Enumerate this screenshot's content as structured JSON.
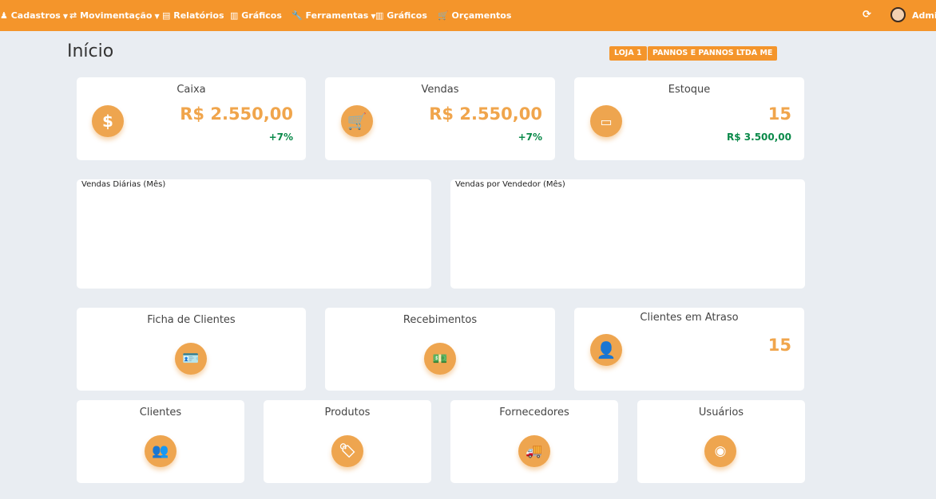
{
  "nav": {
    "items": [
      {
        "label": "Cadastros",
        "icon": "user-icon",
        "caret": true
      },
      {
        "label": "Movimentação",
        "icon": "exchange-icon",
        "caret": true
      },
      {
        "label": "Relatórios",
        "icon": "list-icon",
        "caret": false
      },
      {
        "label": "Gráficos",
        "icon": "bar-chart-icon",
        "caret": false
      },
      {
        "label": "Ferramentas",
        "icon": "wrench-icon",
        "caret": true
      },
      {
        "label": "Gráficos",
        "icon": "bar-chart-icon",
        "caret": false
      },
      {
        "label": "Orçamentos",
        "icon": "cart-icon",
        "caret": false
      }
    ],
    "user": "Admin"
  },
  "page": {
    "title": "Início",
    "badges": [
      "LOJA 1",
      "PANNOS E PANNOS LTDA ME"
    ]
  },
  "cards": {
    "caixa": {
      "title": "Caixa",
      "value": "R$ 2.550,00",
      "delta": "+7%"
    },
    "vendas": {
      "title": "Vendas",
      "value": "R$ 2.550,00",
      "delta": "+7%"
    },
    "estoque": {
      "title": "Estoque",
      "value": "15",
      "amount": "R$ 3.500,00"
    },
    "ficha": {
      "title": "Ficha de Clientes"
    },
    "recebimentos": {
      "title": "Recebimentos"
    },
    "atraso": {
      "title": "Clientes em Atraso",
      "value": "15"
    },
    "clientes": {
      "title": "Clientes"
    },
    "produtos": {
      "title": "Produtos"
    },
    "fornecedores": {
      "title": "Fornecedores"
    },
    "usuarios": {
      "title": "Usuários"
    }
  },
  "charts": {
    "diarias": "Vendas Diárias (Mês)",
    "vendedor": "Vendas por Vendedor (Mês)"
  },
  "colors": {
    "brand": "#f4952b",
    "icon": "#eea54f",
    "positive": "#0b8a4a",
    "background": "#e9edf2"
  }
}
